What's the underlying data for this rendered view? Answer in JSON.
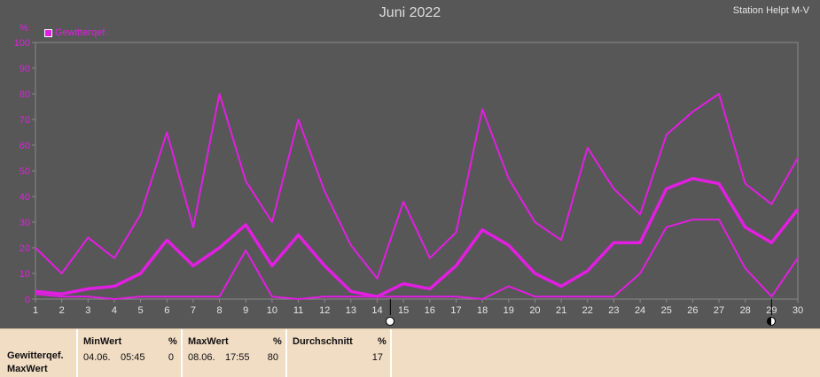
{
  "title": "Juni 2022",
  "station": "Station Helpt M-V",
  "unit": "%",
  "colors": {
    "series": "#e21ee2",
    "background": "#575757",
    "grid": "#8a8a8a",
    "axis_text": "#e21ee2",
    "table_bg": "#f1dcc4"
  },
  "chart_data": {
    "type": "line",
    "x": [
      1,
      2,
      3,
      4,
      5,
      6,
      7,
      8,
      9,
      10,
      11,
      12,
      13,
      14,
      15,
      16,
      17,
      18,
      19,
      20,
      21,
      22,
      23,
      24,
      25,
      26,
      27,
      28,
      29,
      30
    ],
    "xlim": [
      1,
      30
    ],
    "ylim": [
      0,
      100
    ],
    "yticks": [
      0,
      10,
      20,
      30,
      40,
      50,
      60,
      70,
      80,
      90,
      100
    ],
    "ylabel": "%",
    "grid": false,
    "legend": {
      "placement": "top-left",
      "entries": [
        "Gewitterqef."
      ]
    },
    "series": [
      {
        "name": "Gewitterqef.",
        "role": "max",
        "values": [
          20,
          10,
          24,
          16,
          33,
          65,
          28,
          80,
          46,
          30,
          70,
          42,
          21,
          8,
          38,
          16,
          26,
          74,
          47,
          30,
          23,
          59,
          43,
          33,
          64,
          73,
          80,
          45,
          37,
          55
        ]
      },
      {
        "name": "Gewitterqef.",
        "role": "mean",
        "values": [
          3,
          2,
          4,
          5,
          10,
          23,
          13,
          20,
          29,
          13,
          25,
          13,
          3,
          1,
          6,
          4,
          13,
          27,
          21,
          10,
          5,
          11,
          22,
          22,
          43,
          47,
          45,
          28,
          22,
          35
        ]
      },
      {
        "name": "Gewitterqef.",
        "role": "min",
        "values": [
          2,
          1,
          1,
          0,
          1,
          1,
          1,
          1,
          19,
          1,
          0,
          1,
          1,
          1,
          1,
          1,
          1,
          0,
          5,
          1,
          1,
          1,
          1,
          10,
          28,
          31,
          31,
          12,
          1,
          16
        ]
      }
    ],
    "markers": [
      {
        "x": 14.5,
        "kind": "dot-open"
      },
      {
        "x": 29,
        "kind": "dot-half"
      }
    ]
  },
  "table": {
    "row_label_1": "Gewitterqef.",
    "row_label_2": "MaxWert",
    "columns": [
      {
        "header": "MinWert",
        "unit": "%",
        "date": "04.06.",
        "time": "05:45",
        "value": "0"
      },
      {
        "header": "MaxWert",
        "unit": "%",
        "date": "08.06.",
        "time": "17:55",
        "value": "80"
      },
      {
        "header": "Durchschnitt",
        "unit": "%",
        "date": "",
        "time": "",
        "value": "17"
      }
    ]
  }
}
